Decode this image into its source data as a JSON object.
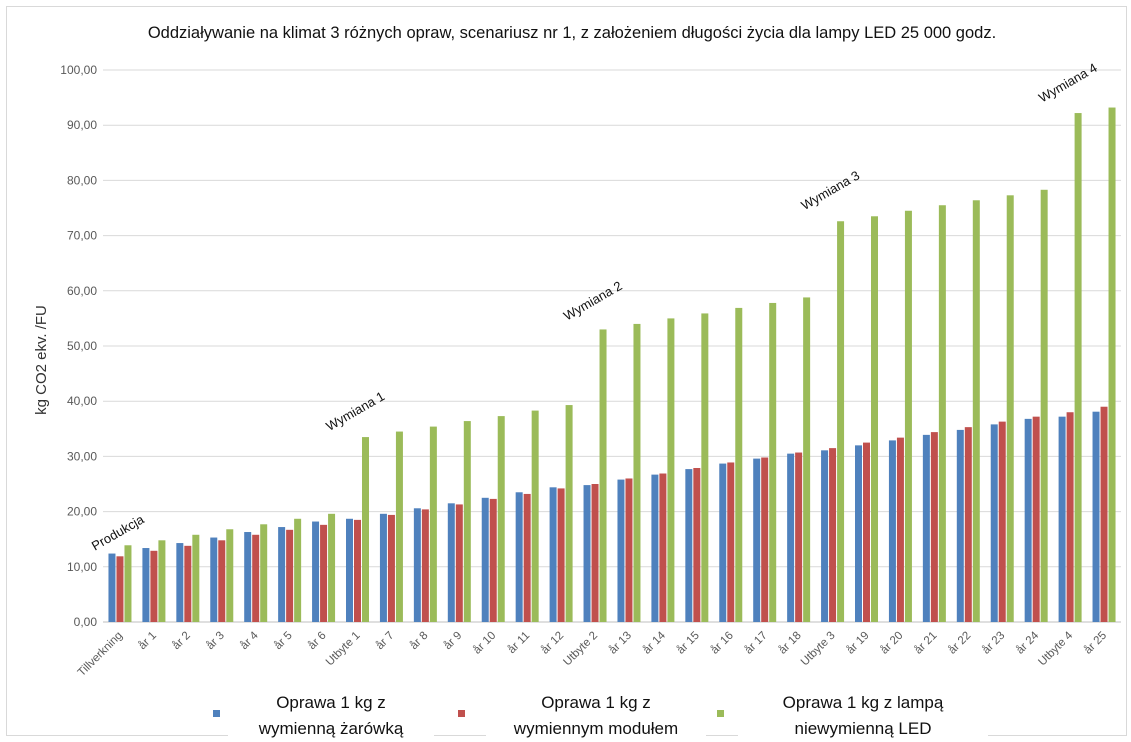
{
  "chart_data": {
    "type": "bar",
    "title": "Oddziaływanie na klimat 3 różnych opraw, scenariusz nr 1, z założeniem długości życia dla lampy LED 25 000 godz.",
    "ylabel": "kg CO2 ekv. /FU",
    "xlabel": "",
    "ylim": [
      0,
      100
    ],
    "yticks": [
      "0,00",
      "10,00",
      "20,00",
      "30,00",
      "40,00",
      "50,00",
      "60,00",
      "70,00",
      "80,00",
      "90,00",
      "100,00"
    ],
    "grid": true,
    "legend_position": "bottom",
    "categories": [
      "Tillverkning",
      "år 1",
      "år 2",
      "år 3",
      "år 4",
      "år 5",
      "år 6",
      "Utbyte 1",
      "år 7",
      "år 8",
      "år 9",
      "år 10",
      "år 11",
      "år 12",
      "Utbyte 2",
      "år 13",
      "år 14",
      "år 15",
      "år 16",
      "år 17",
      "år 18",
      "Utbyte 3",
      "år 19",
      "år 20",
      "år 21",
      "år 22",
      "år 23",
      "år 24",
      "Utbyte 4",
      "år 25"
    ],
    "series": [
      {
        "name": "Oprawa 1 kg z wymienną żarówką",
        "color": "#4f81bd",
        "values": [
          12.4,
          13.4,
          14.3,
          15.3,
          16.3,
          17.2,
          18.2,
          18.7,
          19.6,
          20.6,
          21.5,
          22.5,
          23.5,
          24.4,
          24.8,
          25.8,
          26.7,
          27.7,
          28.7,
          29.6,
          30.5,
          31.1,
          32.0,
          32.9,
          33.9,
          34.8,
          35.8,
          36.8,
          37.2,
          38.1
        ]
      },
      {
        "name": "Oprawa 1 kg z wymiennym modułem",
        "color": "#c0504d",
        "values": [
          11.9,
          12.9,
          13.8,
          14.8,
          15.8,
          16.7,
          17.6,
          18.5,
          19.4,
          20.4,
          21.3,
          22.3,
          23.2,
          24.2,
          25.0,
          26.0,
          26.9,
          27.9,
          28.9,
          29.8,
          30.7,
          31.5,
          32.5,
          33.4,
          34.4,
          35.3,
          36.3,
          37.2,
          38.0,
          39.0
        ]
      },
      {
        "name": "Oprawa 1 kg z lampą niewymienną LED",
        "color": "#9bbb59",
        "values": [
          13.9,
          14.8,
          15.8,
          16.8,
          17.7,
          18.7,
          19.6,
          33.5,
          34.5,
          35.4,
          36.4,
          37.3,
          38.3,
          39.3,
          53.0,
          54.0,
          55.0,
          55.9,
          56.9,
          57.8,
          58.8,
          72.6,
          73.5,
          74.5,
          75.5,
          76.4,
          77.3,
          78.3,
          92.2,
          93.2
        ]
      }
    ],
    "annotations": [
      {
        "text": "Produkcja",
        "category": "Tillverkning",
        "y": 15.5
      },
      {
        "text": "Wymiana 1",
        "category": "Utbyte 1",
        "y": 37.5
      },
      {
        "text": "Wymiana 2",
        "category": "Utbyte 2",
        "y": 57.5
      },
      {
        "text": "Wymiana 3",
        "category": "Utbyte 3",
        "y": 77.5
      },
      {
        "text": "Wymiana 4",
        "category": "Utbyte 4",
        "y": 97
      }
    ],
    "legend": [
      {
        "line1": "Oprawa 1 kg z",
        "line2": "wymienną żarówką"
      },
      {
        "line1": "Oprawa 1 kg z",
        "line2": "wymiennym modułem"
      },
      {
        "line1": "Oprawa 1 kg z lampą",
        "line2": "niewymienną LED"
      }
    ]
  }
}
